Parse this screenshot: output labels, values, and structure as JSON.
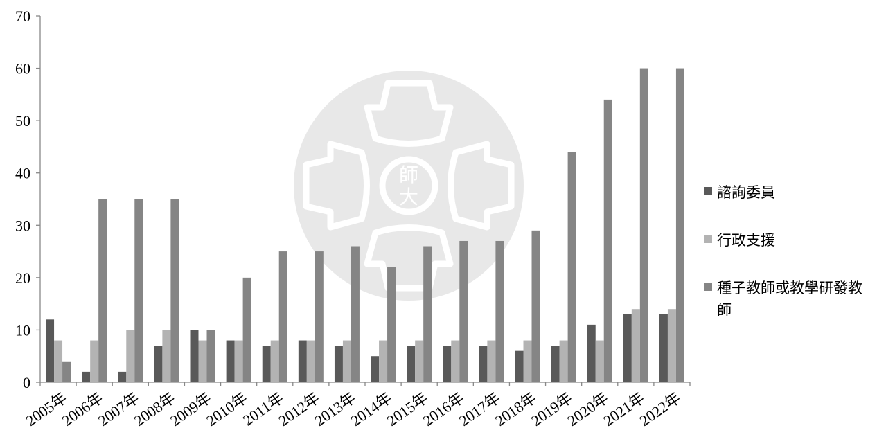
{
  "chart_data": {
    "type": "bar",
    "categories": [
      "2005年",
      "2006年",
      "2007年",
      "2008年",
      "2009年",
      "2010年",
      "2011年",
      "2012年",
      "2013年",
      "2014年",
      "2015年",
      "2016年",
      "2017年",
      "2018年",
      "2019年",
      "2020年",
      "2021年",
      "2022年"
    ],
    "series": [
      {
        "name": "諮詢委員",
        "color": "#595959",
        "values": [
          12,
          2,
          2,
          7,
          10,
          8,
          7,
          8,
          7,
          5,
          7,
          7,
          7,
          6,
          7,
          11,
          13,
          13
        ]
      },
      {
        "name": "行政支援",
        "color": "#b3b3b3",
        "values": [
          8,
          8,
          10,
          10,
          8,
          8,
          8,
          8,
          8,
          8,
          8,
          8,
          8,
          8,
          8,
          8,
          14,
          14
        ]
      },
      {
        "name": "種子教師或教學研發教師",
        "color": "#858585",
        "values": [
          4,
          35,
          35,
          35,
          10,
          20,
          25,
          25,
          26,
          22,
          26,
          27,
          27,
          29,
          44,
          54,
          60,
          60
        ]
      }
    ],
    "ylim": [
      0,
      70
    ],
    "yticks": [
      0,
      10,
      20,
      30,
      40,
      50,
      60,
      70
    ],
    "grid": false,
    "legend_position": "right",
    "watermark": "師大"
  }
}
